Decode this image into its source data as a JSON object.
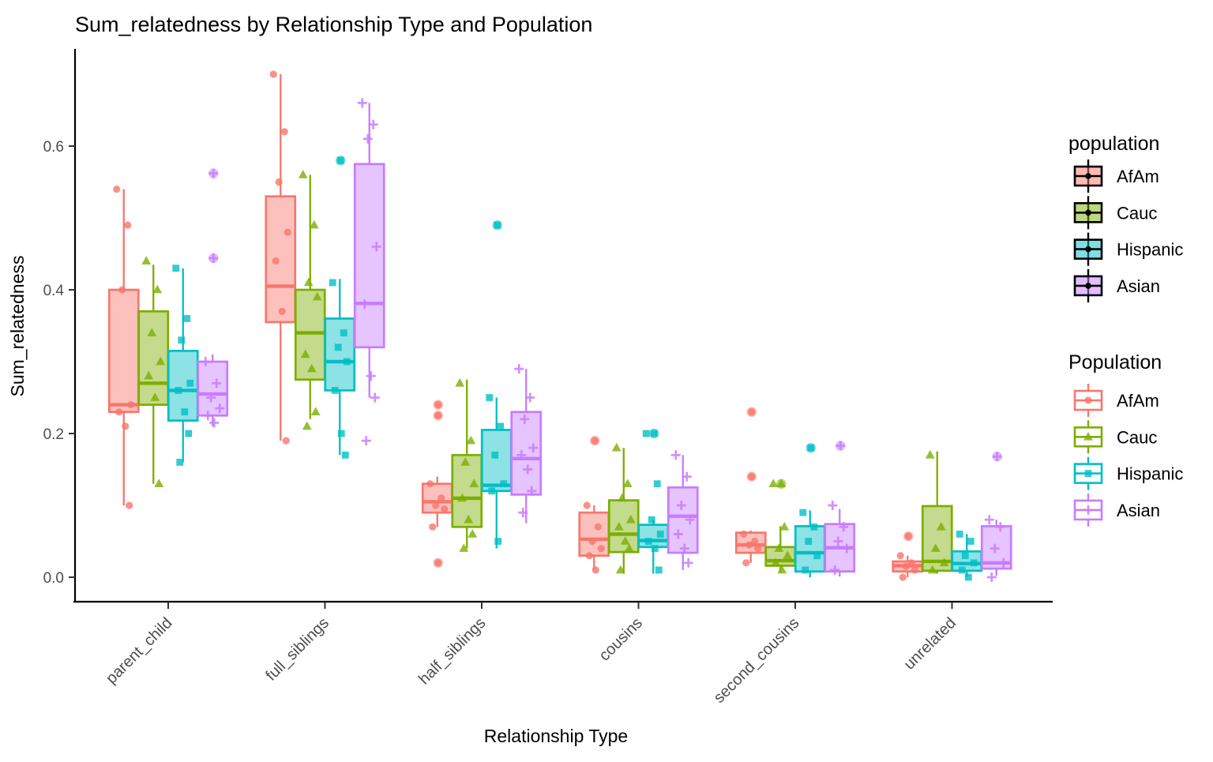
{
  "title": "Sum_relatedness by Relationship Type and Population",
  "axes": {
    "x_label": "Relationship Type",
    "y_label": "Sum_relatedness",
    "y_ticks": [
      {
        "label": "0.0",
        "value": 0.0
      },
      {
        "label": "0.2",
        "value": 0.2
      },
      {
        "label": "0.4",
        "value": 0.4
      },
      {
        "label": "0.6",
        "value": 0.6
      }
    ]
  },
  "legends": [
    {
      "title": "population",
      "key_style": "filled-black",
      "entries": [
        "AfAm",
        "Cauc",
        "Hispanic",
        "Asian"
      ]
    },
    {
      "title": "Population",
      "key_style": "colored-outline",
      "entries": [
        "AfAm",
        "Cauc",
        "Hispanic",
        "Asian"
      ]
    }
  ],
  "chart_data": {
    "type": "grouped_boxplot_with_jitter",
    "title": "Sum_relatedness by Relationship Type and Population",
    "xlabel": "Relationship Type",
    "ylabel": "Sum_relatedness",
    "ylim": [
      0,
      0.73
    ],
    "grid": false,
    "categories": [
      "parent_child",
      "full_siblings",
      "half_siblings",
      "cousins",
      "second_cousins",
      "unrelated"
    ],
    "series": [
      {
        "name": "AfAm",
        "color": "#F8766D",
        "shape": "circle",
        "boxes": [
          {
            "whislo": 0.1,
            "q1": 0.23,
            "med": 0.24,
            "q3": 0.4,
            "whishi": 0.54,
            "outliers": [],
            "points": [
              0.54,
              0.49,
              0.4,
              0.24,
              0.23,
              0.21,
              0.1
            ]
          },
          {
            "whislo": 0.19,
            "q1": 0.355,
            "med": 0.405,
            "q3": 0.53,
            "whishi": 0.7,
            "outliers": [],
            "points": [
              0.7,
              0.62,
              0.55,
              0.48,
              0.44,
              0.37,
              0.19
            ]
          },
          {
            "whislo": 0.07,
            "q1": 0.09,
            "med": 0.105,
            "q3": 0.13,
            "whishi": 0.14,
            "outliers": [
              0.24,
              0.225,
              0.02
            ],
            "points": [
              0.13,
              0.11,
              0.1,
              0.095,
              0.07
            ]
          },
          {
            "whislo": 0.01,
            "q1": 0.03,
            "med": 0.053,
            "q3": 0.09,
            "whishi": 0.1,
            "outliers": [
              0.19
            ],
            "points": [
              0.1,
              0.07,
              0.05,
              0.04,
              0.03,
              0.01
            ]
          },
          {
            "whislo": 0.02,
            "q1": 0.034,
            "med": 0.045,
            "q3": 0.062,
            "whishi": 0.065,
            "outliers": [
              0.23,
              0.14
            ],
            "points": [
              0.06,
              0.05,
              0.045,
              0.04,
              0.02
            ]
          },
          {
            "whislo": 0.0,
            "q1": 0.008,
            "med": 0.016,
            "q3": 0.022,
            "whishi": 0.03,
            "outliers": [
              0.057
            ],
            "points": [
              0.03,
              0.02,
              0.015,
              0.01,
              0.0
            ]
          }
        ]
      },
      {
        "name": "Cauc",
        "color": "#7CAE00",
        "shape": "triangle",
        "boxes": [
          {
            "whislo": 0.13,
            "q1": 0.24,
            "med": 0.27,
            "q3": 0.37,
            "whishi": 0.435,
            "outliers": [],
            "points": [
              0.44,
              0.4,
              0.34,
              0.3,
              0.28,
              0.25,
              0.13
            ]
          },
          {
            "whislo": 0.22,
            "q1": 0.275,
            "med": 0.34,
            "q3": 0.4,
            "whishi": 0.56,
            "outliers": [],
            "points": [
              0.56,
              0.49,
              0.41,
              0.39,
              0.31,
              0.29,
              0.23,
              0.21
            ]
          },
          {
            "whislo": 0.04,
            "q1": 0.07,
            "med": 0.11,
            "q3": 0.17,
            "whishi": 0.275,
            "outliers": [],
            "points": [
              0.27,
              0.19,
              0.16,
              0.13,
              0.11,
              0.08,
              0.06,
              0.04
            ]
          },
          {
            "whislo": 0.005,
            "q1": 0.035,
            "med": 0.06,
            "q3": 0.107,
            "whishi": 0.18,
            "outliers": [],
            "points": [
              0.18,
              0.13,
              0.11,
              0.08,
              0.07,
              0.05,
              0.04,
              0.01
            ]
          },
          {
            "whislo": 0.008,
            "q1": 0.016,
            "med": 0.023,
            "q3": 0.042,
            "whishi": 0.071,
            "outliers": [
              0.13
            ],
            "points": [
              0.13,
              0.07,
              0.04,
              0.03,
              0.02,
              0.01
            ]
          },
          {
            "whislo": 0.005,
            "q1": 0.009,
            "med": 0.022,
            "q3": 0.099,
            "whishi": 0.175,
            "outliers": [],
            "points": [
              0.17,
              0.07,
              0.04,
              0.02,
              0.01
            ]
          }
        ]
      },
      {
        "name": "Hispanic",
        "color": "#00BFC4",
        "shape": "square",
        "boxes": [
          {
            "whislo": 0.16,
            "q1": 0.218,
            "med": 0.26,
            "q3": 0.315,
            "whishi": 0.43,
            "outliers": [],
            "points": [
              0.43,
              0.36,
              0.33,
              0.27,
              0.26,
              0.23,
              0.2,
              0.16
            ]
          },
          {
            "whislo": 0.17,
            "q1": 0.26,
            "med": 0.3,
            "q3": 0.36,
            "whishi": 0.415,
            "outliers": [
              0.58
            ],
            "points": [
              0.41,
              0.34,
              0.32,
              0.3,
              0.26,
              0.2,
              0.17
            ]
          },
          {
            "whislo": 0.04,
            "q1": 0.12,
            "med": 0.128,
            "q3": 0.205,
            "whishi": 0.25,
            "outliers": [
              0.49
            ],
            "points": [
              0.25,
              0.21,
              0.17,
              0.13,
              0.12,
              0.05
            ]
          },
          {
            "whislo": 0.005,
            "q1": 0.042,
            "med": 0.051,
            "q3": 0.073,
            "whishi": 0.08,
            "outliers": [
              0.2
            ],
            "points": [
              0.2,
              0.13,
              0.08,
              0.06,
              0.05,
              0.04,
              0.01
            ]
          },
          {
            "whislo": 0.0,
            "q1": 0.008,
            "med": 0.034,
            "q3": 0.071,
            "whishi": 0.093,
            "outliers": [
              0.18
            ],
            "points": [
              0.09,
              0.07,
              0.05,
              0.03,
              0.01
            ]
          },
          {
            "whislo": 0.0,
            "q1": 0.009,
            "med": 0.019,
            "q3": 0.036,
            "whishi": 0.06,
            "outliers": [],
            "points": [
              0.06,
              0.05,
              0.03,
              0.02,
              0.01,
              0.0
            ]
          }
        ]
      },
      {
        "name": "Asian",
        "color": "#C77CFF",
        "shape": "plus",
        "boxes": [
          {
            "whislo": 0.21,
            "q1": 0.225,
            "med": 0.255,
            "q3": 0.3,
            "whishi": 0.31,
            "outliers": [
              0.562,
              0.444
            ],
            "points": [
              0.3,
              0.27,
              0.25,
              0.235,
              0.225,
              0.215
            ]
          },
          {
            "whislo": 0.25,
            "q1": 0.32,
            "med": 0.381,
            "q3": 0.575,
            "whishi": 0.66,
            "outliers": [],
            "points": [
              0.66,
              0.63,
              0.61,
              0.46,
              0.38,
              0.28,
              0.25,
              0.19
            ]
          },
          {
            "whislo": 0.075,
            "q1": 0.115,
            "med": 0.165,
            "q3": 0.23,
            "whishi": 0.29,
            "outliers": [],
            "points": [
              0.29,
              0.25,
              0.22,
              0.18,
              0.17,
              0.15,
              0.12,
              0.09
            ]
          },
          {
            "whislo": 0.01,
            "q1": 0.034,
            "med": 0.085,
            "q3": 0.125,
            "whishi": 0.17,
            "outliers": [],
            "points": [
              0.17,
              0.14,
              0.1,
              0.08,
              0.06,
              0.04,
              0.02
            ]
          },
          {
            "whislo": 0.001,
            "q1": 0.008,
            "med": 0.041,
            "q3": 0.074,
            "whishi": 0.095,
            "outliers": [
              0.183
            ],
            "points": [
              0.1,
              0.07,
              0.05,
              0.04,
              0.01
            ]
          },
          {
            "whislo": 0.002,
            "q1": 0.012,
            "med": 0.02,
            "q3": 0.071,
            "whishi": 0.08,
            "outliers": [
              0.168
            ],
            "points": [
              0.08,
              0.07,
              0.04,
              0.02,
              0.0
            ]
          }
        ]
      }
    ],
    "legend_position": "right"
  }
}
